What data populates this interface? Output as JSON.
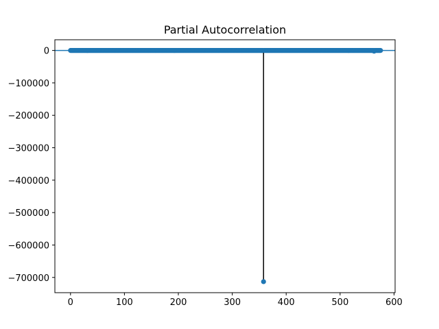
{
  "chart_data": {
    "type": "stem",
    "title": "Partial Autocorrelation",
    "xlabel": "",
    "ylabel": "",
    "xlim": [
      -29,
      602
    ],
    "ylim": [
      -747000,
      33000
    ],
    "x_ticks": [
      0,
      100,
      200,
      300,
      400,
      500,
      600
    ],
    "y_ticks": [
      0,
      -100000,
      -200000,
      -300000,
      -400000,
      -500000,
      -600000,
      -700000
    ],
    "y_tick_labels": [
      "0",
      "−100000",
      "−200000",
      "−300000",
      "−400000",
      "−500000",
      "−600000",
      "−700000"
    ],
    "lags": {
      "start": 0,
      "end": 575
    },
    "baseline_value": 0,
    "spike": {
      "lag": 358,
      "value": -713000
    },
    "minor_points": [
      {
        "lag": 563,
        "value": -2200
      }
    ],
    "grid": false,
    "colors": {
      "marker": "#1f77b4",
      "stem": "#000000",
      "baseline": "#1f77b4"
    }
  }
}
